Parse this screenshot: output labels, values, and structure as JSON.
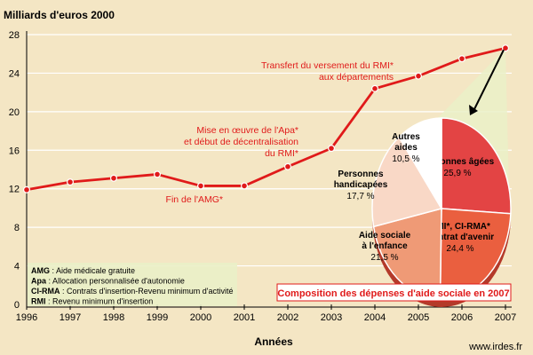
{
  "chart_data": {
    "type": "line",
    "ylabel": "Milliards d'euros 2000",
    "xlabel": "Années",
    "x": [
      "1996",
      "1997",
      "1998",
      "1999",
      "2000",
      "2001",
      "2002",
      "2003",
      "2004",
      "2005",
      "2006",
      "2007"
    ],
    "series": [
      {
        "values": [
          11.9,
          12.7,
          13.1,
          13.5,
          12.3,
          12.3,
          14.3,
          16.2,
          22.4,
          23.7,
          25.5,
          26.6
        ]
      }
    ],
    "ylim": [
      0,
      28
    ],
    "yticks": [
      "0",
      "4",
      "8",
      "12",
      "16",
      "20",
      "24",
      "28"
    ],
    "annotations": {
      "transfert": [
        "Transfert du versement du RMI*",
        "aux départements"
      ],
      "apa": [
        "Mise en œuvre de l'Apa*",
        "et début de décentralisation",
        "du RMI*"
      ],
      "amg": "Fin de l'AMG*"
    },
    "pie": {
      "title": "Composition des dépenses d'aide sociale en 2007",
      "slices": [
        {
          "label": [
            "Personnes âgées"
          ],
          "value": 25.9,
          "value_text": "25,9 %",
          "color": "#e34444"
        },
        {
          "label": [
            "RMI*, CI-RMA*",
            "Contrat d'avenir"
          ],
          "value": 24.4,
          "value_text": "24,4 %",
          "color": "#ea5f3f"
        },
        {
          "label": [
            "Aide sociale",
            "à l'enfance"
          ],
          "value": 21.5,
          "value_text": "21,5 %",
          "color": "#ef9a76"
        },
        {
          "label": [
            "Personnes",
            "handicapées"
          ],
          "value": 17.7,
          "value_text": "17,7 %",
          "color": "#f9d8c6"
        },
        {
          "label": [
            "Autres",
            "aides"
          ],
          "value": 10.5,
          "value_text": "10,5 %",
          "color": "#ffffff"
        }
      ]
    },
    "glossary": [
      {
        "abbr": "AMG",
        "text": " : Aide médicale gratuite"
      },
      {
        "abbr": "Apa",
        "text": " : Allocation personnalisée d'autonomie"
      },
      {
        "abbr": "CI-RMA",
        "text": " : Contrats d'insertion-Revenu minimum d'activité"
      },
      {
        "abbr": "RMI",
        "text": " : Revenu minimum d'insertion"
      }
    ],
    "source": "www.irdes.fr",
    "colors": {
      "line": "#e01a1a",
      "background": "#f4e6c4",
      "grid": "#ffffff",
      "callout": "#eaf0c8"
    }
  }
}
